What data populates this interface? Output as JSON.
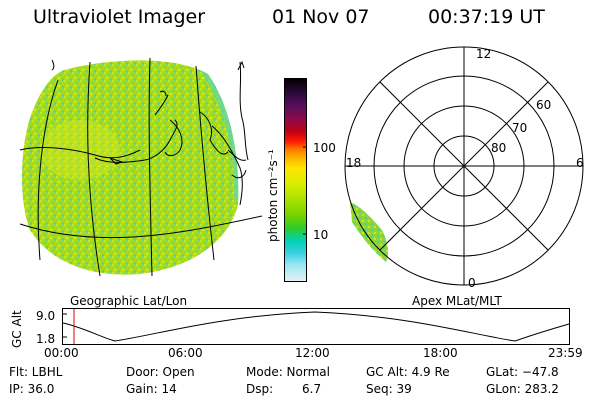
{
  "header": {
    "instrument": "Ultraviolet Imager",
    "date": "01 Nov 07",
    "time": "00:37:19 UT"
  },
  "geo_panel": {
    "label": "Geographic Lat/Lon"
  },
  "polar_panel": {
    "label": "Apex MLat/MLT",
    "mlt_labels": {
      "top": "12",
      "left": "18",
      "right": "6",
      "bottom": "0"
    },
    "mlat_labels": [
      "60",
      "70",
      "80"
    ]
  },
  "colorbar": {
    "unit": "photon cm⁻²s⁻¹",
    "ticks": [
      "100",
      "10"
    ],
    "colors": [
      "#000000",
      "#2a0a3a",
      "#5a0f5a",
      "#8b0a4a",
      "#c00016",
      "#ff1a00",
      "#ff7a00",
      "#ffb000",
      "#ffe400",
      "#d8ee00",
      "#a8e000",
      "#6ed200",
      "#2ecb2e",
      "#00d2b4",
      "#38cfe4",
      "#9ee7f2",
      "#e8f0f4"
    ]
  },
  "altitude_plot": {
    "ylabel": "GC Alt",
    "yticks": [
      "9.0",
      "1.8"
    ],
    "xticks": [
      "00:00",
      "06:00",
      "12:00",
      "18:00",
      "23:59"
    ]
  },
  "info": {
    "row1": {
      "flt": "Flt: LBHL",
      "door": "Door: Open",
      "mode": "Mode: Normal",
      "gc_alt": "GC Alt: 4.9 Re",
      "glat": "GLat: −47.8"
    },
    "row2": {
      "ip": "IP: 36.0",
      "gain": "Gain: 14",
      "dsp_label": "Dsp:",
      "dsp_value": "6.7",
      "seq": "Seq: 39",
      "glon": "GLon: 283.2"
    }
  }
}
